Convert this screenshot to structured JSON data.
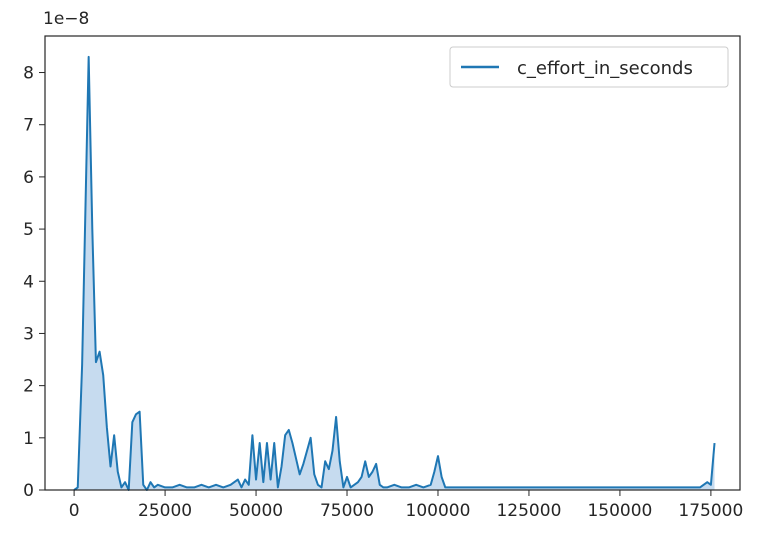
{
  "chart_data": {
    "type": "area",
    "title": "",
    "xlabel": "",
    "ylabel": "",
    "y_offset_label": "1e−8",
    "xlim": [
      -8000,
      183000
    ],
    "ylim": [
      0,
      8.7
    ],
    "x_ticks": [
      0,
      25000,
      50000,
      75000,
      100000,
      125000,
      150000,
      175000
    ],
    "x_tick_labels": [
      "0",
      "25000",
      "50000",
      "75000",
      "100000",
      "125000",
      "150000",
      "175000"
    ],
    "y_ticks": [
      0,
      1,
      2,
      3,
      4,
      5,
      6,
      7,
      8
    ],
    "y_tick_labels": [
      "0",
      "1",
      "2",
      "3",
      "4",
      "5",
      "6",
      "7",
      "8"
    ],
    "grid": false,
    "legend_position": "top-right",
    "series": [
      {
        "name": "c_effort_in_seconds",
        "color": "#1f77b4",
        "fill_color": "#c6dbef",
        "x": [
          0,
          1000,
          2200,
          4000,
          5000,
          6000,
          7000,
          8000,
          9000,
          10000,
          11000,
          12000,
          13000,
          14000,
          15000,
          16000,
          17000,
          18000,
          19000,
          20000,
          21000,
          22000,
          23000,
          25000,
          27000,
          29000,
          31000,
          33000,
          35000,
          37000,
          39000,
          41000,
          43000,
          45000,
          46000,
          47000,
          48000,
          49000,
          50000,
          51000,
          52000,
          53000,
          54000,
          55000,
          56000,
          57000,
          58000,
          59000,
          60000,
          61000,
          62000,
          63000,
          64000,
          65000,
          66000,
          67000,
          68000,
          69000,
          70000,
          71000,
          72000,
          73000,
          74000,
          75000,
          76000,
          77000,
          78000,
          79000,
          80000,
          81000,
          82000,
          83000,
          84000,
          85000,
          86000,
          88000,
          90000,
          92000,
          94000,
          96000,
          98000,
          99000,
          100000,
          101000,
          102000,
          104000,
          110000,
          120000,
          130000,
          140000,
          150000,
          160000,
          165000,
          168000,
          170000,
          172000,
          173000,
          174000,
          175000,
          176000
        ],
        "y": [
          0,
          0.05,
          2.4,
          8.3,
          5.0,
          2.45,
          2.65,
          2.2,
          1.2,
          0.45,
          1.05,
          0.35,
          0.05,
          0.15,
          0.0,
          1.3,
          1.45,
          1.5,
          0.1,
          0.0,
          0.15,
          0.05,
          0.1,
          0.05,
          0.05,
          0.1,
          0.05,
          0.05,
          0.1,
          0.05,
          0.1,
          0.05,
          0.1,
          0.2,
          0.05,
          0.2,
          0.1,
          1.05,
          0.2,
          0.9,
          0.15,
          0.9,
          0.2,
          0.9,
          0.05,
          0.45,
          1.05,
          1.15,
          0.9,
          0.6,
          0.3,
          0.5,
          0.75,
          1.0,
          0.3,
          0.1,
          0.05,
          0.55,
          0.4,
          0.75,
          1.4,
          0.55,
          0.05,
          0.25,
          0.05,
          0.1,
          0.15,
          0.25,
          0.55,
          0.25,
          0.35,
          0.5,
          0.1,
          0.05,
          0.05,
          0.1,
          0.05,
          0.05,
          0.1,
          0.05,
          0.1,
          0.35,
          0.65,
          0.25,
          0.05,
          0.05,
          0.05,
          0.05,
          0.05,
          0.05,
          0.05,
          0.05,
          0.05,
          0.05,
          0.05,
          0.05,
          0.1,
          0.15,
          0.1,
          0.9
        ]
      }
    ]
  }
}
